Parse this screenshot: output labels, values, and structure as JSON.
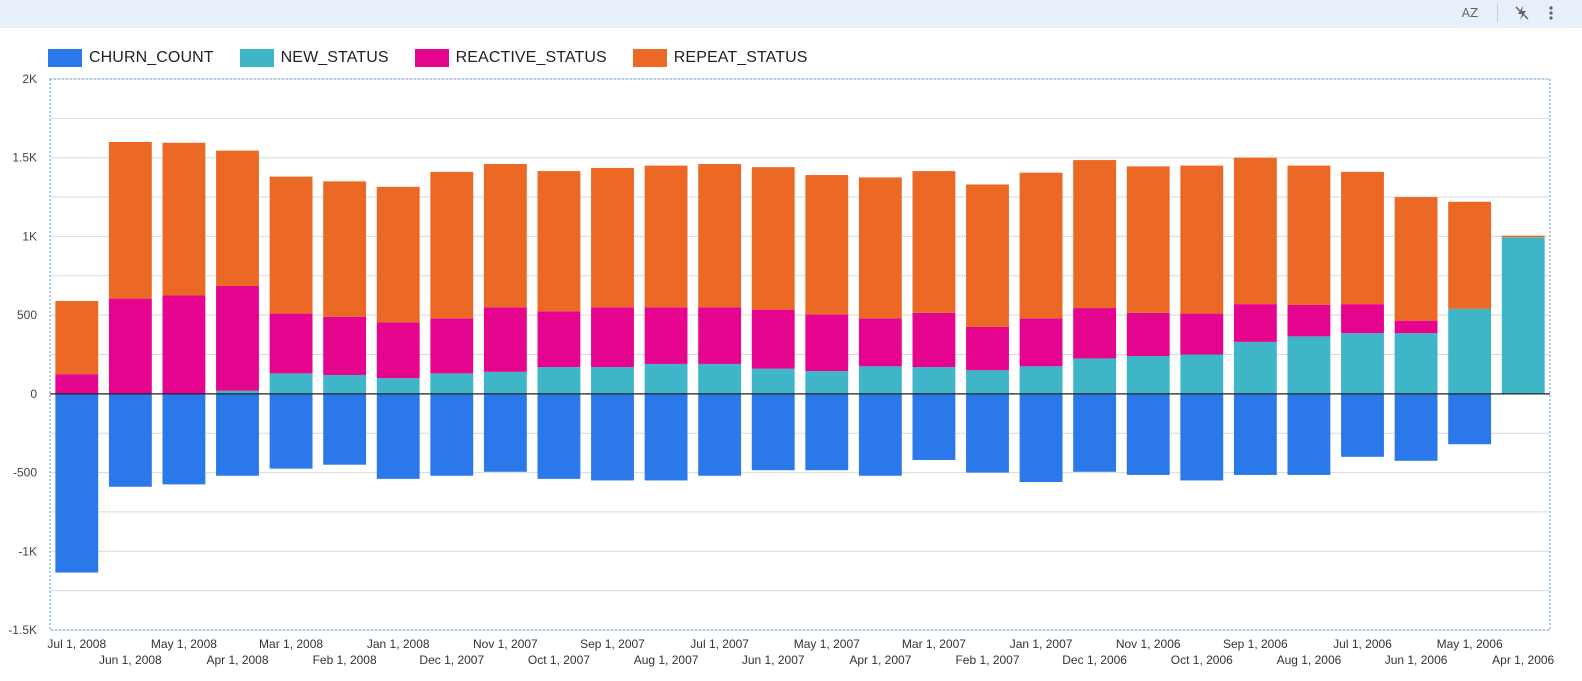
{
  "toolbar": {
    "sort_icon": "sort-az-icon",
    "sort_label": "AZ",
    "hide_icon": "crossed-lightning-icon",
    "more_icon": "more-vertical-icon"
  },
  "colors": {
    "CHURN_COUNT": "#2a78e9",
    "NEW_STATUS": "#3eb6c8",
    "REACTIVE_STATUS": "#e5048e",
    "REPEAT_STATUS": "#eb6924"
  },
  "chart_data": {
    "type": "bar",
    "stacked": true,
    "categories": [
      "Jul 1, 2008",
      "Jun 1, 2008",
      "May 1, 2008",
      "Apr 1, 2008",
      "Mar 1, 2008",
      "Feb 1, 2008",
      "Jan 1, 2008",
      "Dec 1, 2007",
      "Nov 1, 2007",
      "Oct 1, 2007",
      "Sep 1, 2007",
      "Aug 1, 2007",
      "Jul 1, 2007",
      "Jun 1, 2007",
      "May 1, 2007",
      "Apr 1, 2007",
      "Mar 1, 2007",
      "Feb 1, 2007",
      "Jan 1, 2007",
      "Dec 1, 2006",
      "Nov 1, 2006",
      "Oct 1, 2006",
      "Sep 1, 2006",
      "Aug 1, 2006",
      "Jul 1, 2006",
      "Jun 1, 2006",
      "May 1, 2006",
      "Apr 1, 2006"
    ],
    "series": [
      {
        "name": "CHURN_COUNT",
        "values": [
          -1135,
          -590,
          -575,
          -520,
          -475,
          -450,
          -540,
          -520,
          -495,
          -540,
          -550,
          -550,
          -520,
          -485,
          -485,
          -520,
          -420,
          -500,
          -560,
          -495,
          -515,
          -550,
          -515,
          -515,
          -400,
          -425,
          -320,
          0
        ]
      },
      {
        "name": "NEW_STATUS",
        "values": [
          0,
          0,
          0,
          20,
          130,
          120,
          100,
          130,
          140,
          170,
          170,
          190,
          190,
          160,
          145,
          175,
          170,
          150,
          175,
          225,
          240,
          250,
          330,
          365,
          385,
          385,
          540,
          995
        ]
      },
      {
        "name": "REACTIVE_STATUS",
        "values": [
          125,
          605,
          625,
          665,
          380,
          370,
          355,
          350,
          410,
          355,
          380,
          360,
          360,
          375,
          360,
          305,
          345,
          275,
          305,
          320,
          275,
          260,
          240,
          200,
          185,
          80,
          0,
          0
        ]
      },
      {
        "name": "REPEAT_STATUS",
        "values": [
          465,
          995,
          970,
          860,
          870,
          860,
          860,
          930,
          910,
          890,
          885,
          900,
          910,
          905,
          885,
          895,
          900,
          905,
          925,
          940,
          930,
          940,
          930,
          885,
          840,
          785,
          680,
          10
        ]
      }
    ],
    "ylim": [
      -1500,
      2000
    ],
    "yticks": [
      -1500,
      -1000,
      -500,
      0,
      500,
      1000,
      1500,
      2000
    ],
    "ytick_labels": [
      "-1.5K",
      "-1K",
      "-500",
      "0",
      "500",
      "1K",
      "1.5K",
      "2K"
    ],
    "xlabel": "",
    "ylabel": "",
    "title": "",
    "legend_position": "top-left",
    "grid": true
  }
}
